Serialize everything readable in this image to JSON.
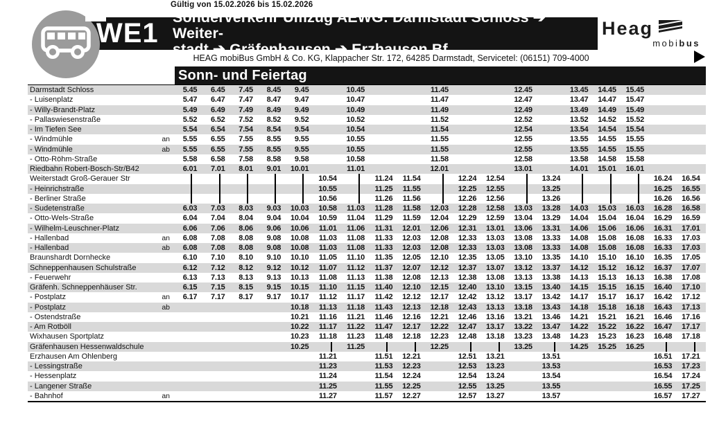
{
  "validity": "Gültig von 15.02.2026 bis 15.02.2026",
  "route": {
    "number": "WE1",
    "title": "Sonderverkehr Umzug AEWG: Darmstadt Schloss ➔ Weiter-\nstadt ➔ Gräfenhausen ➔ Erzhausen Bf"
  },
  "operator_line": "HEAG mobiBus GmbH & Co. KG, Klappacher Str. 172, 64285 Darmstadt, Servicetel: (06151) 709-4000",
  "logo": {
    "brand": "Heag",
    "sub_normal": "mobi",
    "sub_bold": "bus"
  },
  "day_type": "Sonn- und Feiertag",
  "colors": {
    "bar_black": "#141414",
    "stripe_gray": "#d9d9d9",
    "badge_gray": "#9b9b9b"
  },
  "table": {
    "rows": [
      {
        "stop": "Darmstadt Schloss",
        "note": "",
        "times": [
          "5.45",
          "6.45",
          "7.45",
          "8.45",
          "9.45",
          "",
          "10.45",
          "",
          "",
          "11.45",
          "",
          "",
          "12.45",
          "",
          "13.45",
          "14.45",
          "15.45",
          "",
          ""
        ]
      },
      {
        "stop": "- Luisenplatz",
        "note": "",
        "times": [
          "5.47",
          "6.47",
          "7.47",
          "8.47",
          "9.47",
          "",
          "10.47",
          "",
          "",
          "11.47",
          "",
          "",
          "12.47",
          "",
          "13.47",
          "14.47",
          "15.47",
          "",
          ""
        ]
      },
      {
        "stop": "- Willy-Brandt-Platz",
        "note": "",
        "times": [
          "5.49",
          "6.49",
          "7.49",
          "8.49",
          "9.49",
          "",
          "10.49",
          "",
          "",
          "11.49",
          "",
          "",
          "12.49",
          "",
          "13.49",
          "14.49",
          "15.49",
          "",
          ""
        ]
      },
      {
        "stop": "- Pallaswiesenstraße",
        "note": "",
        "times": [
          "5.52",
          "6.52",
          "7.52",
          "8.52",
          "9.52",
          "",
          "10.52",
          "",
          "",
          "11.52",
          "",
          "",
          "12.52",
          "",
          "13.52",
          "14.52",
          "15.52",
          "",
          ""
        ]
      },
      {
        "stop": "- Im Tiefen See",
        "note": "",
        "times": [
          "5.54",
          "6.54",
          "7.54",
          "8.54",
          "9.54",
          "",
          "10.54",
          "",
          "",
          "11.54",
          "",
          "",
          "12.54",
          "",
          "13.54",
          "14.54",
          "15.54",
          "",
          ""
        ]
      },
      {
        "stop": "- Windmühle",
        "note": "an",
        "times": [
          "5.55",
          "6.55",
          "7.55",
          "8.55",
          "9.55",
          "",
          "10.55",
          "",
          "",
          "11.55",
          "",
          "",
          "12.55",
          "",
          "13.55",
          "14.55",
          "15.55",
          "",
          ""
        ]
      },
      {
        "stop": "- Windmühle",
        "note": "ab",
        "times": [
          "5.55",
          "6.55",
          "7.55",
          "8.55",
          "9.55",
          "",
          "10.55",
          "",
          "",
          "11.55",
          "",
          "",
          "12.55",
          "",
          "13.55",
          "14.55",
          "15.55",
          "",
          ""
        ]
      },
      {
        "stop": "- Otto-Röhm-Straße",
        "note": "",
        "times": [
          "5.58",
          "6.58",
          "7.58",
          "8.58",
          "9.58",
          "",
          "10.58",
          "",
          "",
          "11.58",
          "",
          "",
          "12.58",
          "",
          "13.58",
          "14.58",
          "15.58",
          "",
          ""
        ]
      },
      {
        "stop": "Riedbahn Robert-Bosch-Str/B42",
        "note": "",
        "times": [
          "6.01",
          "7.01",
          "8.01",
          "9.01",
          "10.01",
          "",
          "11.01",
          "",
          "",
          "12.01",
          "",
          "",
          "13.01",
          "",
          "14.01",
          "15.01",
          "16.01",
          "",
          ""
        ]
      },
      {
        "stop": "Weiterstadt Groß-Gerauer Str",
        "note": "",
        "times": [
          "|",
          "|",
          "|",
          "|",
          "|",
          "10.54",
          "|",
          "11.24",
          "11.54",
          "|",
          "12.24",
          "12.54",
          "|",
          "13.24",
          "|",
          "|",
          "|",
          "16.24",
          "16.54"
        ]
      },
      {
        "stop": "- Heinrichstraße",
        "note": "",
        "times": [
          "|",
          "|",
          "|",
          "|",
          "|",
          "10.55",
          "|",
          "11.25",
          "11.55",
          "|",
          "12.25",
          "12.55",
          "|",
          "13.25",
          "|",
          "|",
          "|",
          "16.25",
          "16.55"
        ]
      },
      {
        "stop": "- Berliner Straße",
        "note": "",
        "times": [
          "|",
          "|",
          "|",
          "|",
          "|",
          "10.56",
          "|",
          "11.26",
          "11.56",
          "|",
          "12.26",
          "12.56",
          "|",
          "13.26",
          "|",
          "|",
          "|",
          "16.26",
          "16.56"
        ]
      },
      {
        "stop": "- Sudetenstraße",
        "note": "",
        "times": [
          "6.03",
          "7.03",
          "8.03",
          "9.03",
          "10.03",
          "10.58",
          "11.03",
          "11.28",
          "11.58",
          "12.03",
          "12.28",
          "12.58",
          "13.03",
          "13.28",
          "14.03",
          "15.03",
          "16.03",
          "16.28",
          "16.58"
        ]
      },
      {
        "stop": "- Otto-Wels-Straße",
        "note": "",
        "times": [
          "6.04",
          "7.04",
          "8.04",
          "9.04",
          "10.04",
          "10.59",
          "11.04",
          "11.29",
          "11.59",
          "12.04",
          "12.29",
          "12.59",
          "13.04",
          "13.29",
          "14.04",
          "15.04",
          "16.04",
          "16.29",
          "16.59"
        ]
      },
      {
        "stop": "- Wilhelm-Leuschner-Platz",
        "note": "",
        "times": [
          "6.06",
          "7.06",
          "8.06",
          "9.06",
          "10.06",
          "11.01",
          "11.06",
          "11.31",
          "12.01",
          "12.06",
          "12.31",
          "13.01",
          "13.06",
          "13.31",
          "14.06",
          "15.06",
          "16.06",
          "16.31",
          "17.01"
        ]
      },
      {
        "stop": "- Hallenbad",
        "note": "an",
        "times": [
          "6.08",
          "7.08",
          "8.08",
          "9.08",
          "10.08",
          "11.03",
          "11.08",
          "11.33",
          "12.03",
          "12.08",
          "12.33",
          "13.03",
          "13.08",
          "13.33",
          "14.08",
          "15.08",
          "16.08",
          "16.33",
          "17.03"
        ]
      },
      {
        "stop": "- Hallenbad",
        "note": "ab",
        "times": [
          "6.08",
          "7.08",
          "8.08",
          "9.08",
          "10.08",
          "11.03",
          "11.08",
          "11.33",
          "12.03",
          "12.08",
          "12.33",
          "13.03",
          "13.08",
          "13.33",
          "14.08",
          "15.08",
          "16.08",
          "16.33",
          "17.03"
        ]
      },
      {
        "stop": "Braunshardt Dornhecke",
        "note": "",
        "times": [
          "6.10",
          "7.10",
          "8.10",
          "9.10",
          "10.10",
          "11.05",
          "11.10",
          "11.35",
          "12.05",
          "12.10",
          "12.35",
          "13.05",
          "13.10",
          "13.35",
          "14.10",
          "15.10",
          "16.10",
          "16.35",
          "17.05"
        ]
      },
      {
        "stop": "Schneppenhausen Schulstraße",
        "note": "",
        "times": [
          "6.12",
          "7.12",
          "8.12",
          "9.12",
          "10.12",
          "11.07",
          "11.12",
          "11.37",
          "12.07",
          "12.12",
          "12.37",
          "13.07",
          "13.12",
          "13.37",
          "14.12",
          "15.12",
          "16.12",
          "16.37",
          "17.07"
        ]
      },
      {
        "stop": "- Feuerwehr",
        "note": "",
        "times": [
          "6.13",
          "7.13",
          "8.13",
          "9.13",
          "10.13",
          "11.08",
          "11.13",
          "11.38",
          "12.08",
          "12.13",
          "12.38",
          "13.08",
          "13.13",
          "13.38",
          "14.13",
          "15.13",
          "16.13",
          "16.38",
          "17.08"
        ]
      },
      {
        "stop": "Gräfenh. Schneppenhäuser Str.",
        "note": "",
        "times": [
          "6.15",
          "7.15",
          "8.15",
          "9.15",
          "10.15",
          "11.10",
          "11.15",
          "11.40",
          "12.10",
          "12.15",
          "12.40",
          "13.10",
          "13.15",
          "13.40",
          "14.15",
          "15.15",
          "16.15",
          "16.40",
          "17.10"
        ]
      },
      {
        "stop": "- Postplatz",
        "note": "an",
        "times": [
          "6.17",
          "7.17",
          "8.17",
          "9.17",
          "10.17",
          "11.12",
          "11.17",
          "11.42",
          "12.12",
          "12.17",
          "12.42",
          "13.12",
          "13.17",
          "13.42",
          "14.17",
          "15.17",
          "16.17",
          "16.42",
          "17.12"
        ]
      },
      {
        "stop": "- Postplatz",
        "note": "ab",
        "times": [
          "",
          "",
          "",
          "",
          "10.18",
          "11.13",
          "11.18",
          "11.43",
          "12.13",
          "12.18",
          "12.43",
          "13.13",
          "13.18",
          "13.43",
          "14.18",
          "15.18",
          "16.18",
          "16.43",
          "17.13"
        ]
      },
      {
        "stop": "- Ostendstraße",
        "note": "",
        "times": [
          "",
          "",
          "",
          "",
          "10.21",
          "11.16",
          "11.21",
          "11.46",
          "12.16",
          "12.21",
          "12.46",
          "13.16",
          "13.21",
          "13.46",
          "14.21",
          "15.21",
          "16.21",
          "16.46",
          "17.16"
        ]
      },
      {
        "stop": "- Am Rotböll",
        "note": "",
        "times": [
          "",
          "",
          "",
          "",
          "10.22",
          "11.17",
          "11.22",
          "11.47",
          "12.17",
          "12.22",
          "12.47",
          "13.17",
          "13.22",
          "13.47",
          "14.22",
          "15.22",
          "16.22",
          "16.47",
          "17.17"
        ]
      },
      {
        "stop": "Wixhausen Sportplatz",
        "note": "",
        "times": [
          "",
          "",
          "",
          "",
          "10.23",
          "11.18",
          "11.23",
          "11.48",
          "12.18",
          "12.23",
          "12.48",
          "13.18",
          "13.23",
          "13.48",
          "14.23",
          "15.23",
          "16.23",
          "16.48",
          "17.18"
        ]
      },
      {
        "stop": "Gräfenhausen Hessenwaldschule",
        "note": "",
        "times": [
          "",
          "",
          "",
          "",
          "10.25",
          "|",
          "11.25",
          "|",
          "|",
          "12.25",
          "|",
          "|",
          "13.25",
          "|",
          "14.25",
          "15.25",
          "16.25",
          "|",
          "|"
        ]
      },
      {
        "stop": "Erzhausen Am Ohlenberg",
        "note": "",
        "times": [
          "",
          "",
          "",
          "",
          "",
          "11.21",
          "",
          "11.51",
          "12.21",
          "",
          "12.51",
          "13.21",
          "",
          "13.51",
          "",
          "",
          "",
          "16.51",
          "17.21"
        ]
      },
      {
        "stop": "- Lessingstraße",
        "note": "",
        "times": [
          "",
          "",
          "",
          "",
          "",
          "11.23",
          "",
          "11.53",
          "12.23",
          "",
          "12.53",
          "13.23",
          "",
          "13.53",
          "",
          "",
          "",
          "16.53",
          "17.23"
        ]
      },
      {
        "stop": "- Hessenplatz",
        "note": "",
        "times": [
          "",
          "",
          "",
          "",
          "",
          "11.24",
          "",
          "11.54",
          "12.24",
          "",
          "12.54",
          "13.24",
          "",
          "13.54",
          "",
          "",
          "",
          "16.54",
          "17.24"
        ]
      },
      {
        "stop": "- Langener Straße",
        "note": "",
        "times": [
          "",
          "",
          "",
          "",
          "",
          "11.25",
          "",
          "11.55",
          "12.25",
          "",
          "12.55",
          "13.25",
          "",
          "13.55",
          "",
          "",
          "",
          "16.55",
          "17.25"
        ]
      },
      {
        "stop": "- Bahnhof",
        "note": "an",
        "times": [
          "",
          "",
          "",
          "",
          "",
          "11.27",
          "",
          "11.57",
          "12.27",
          "",
          "12.57",
          "13.27",
          "",
          "13.57",
          "",
          "",
          "",
          "16.57",
          "17.27"
        ]
      }
    ]
  }
}
